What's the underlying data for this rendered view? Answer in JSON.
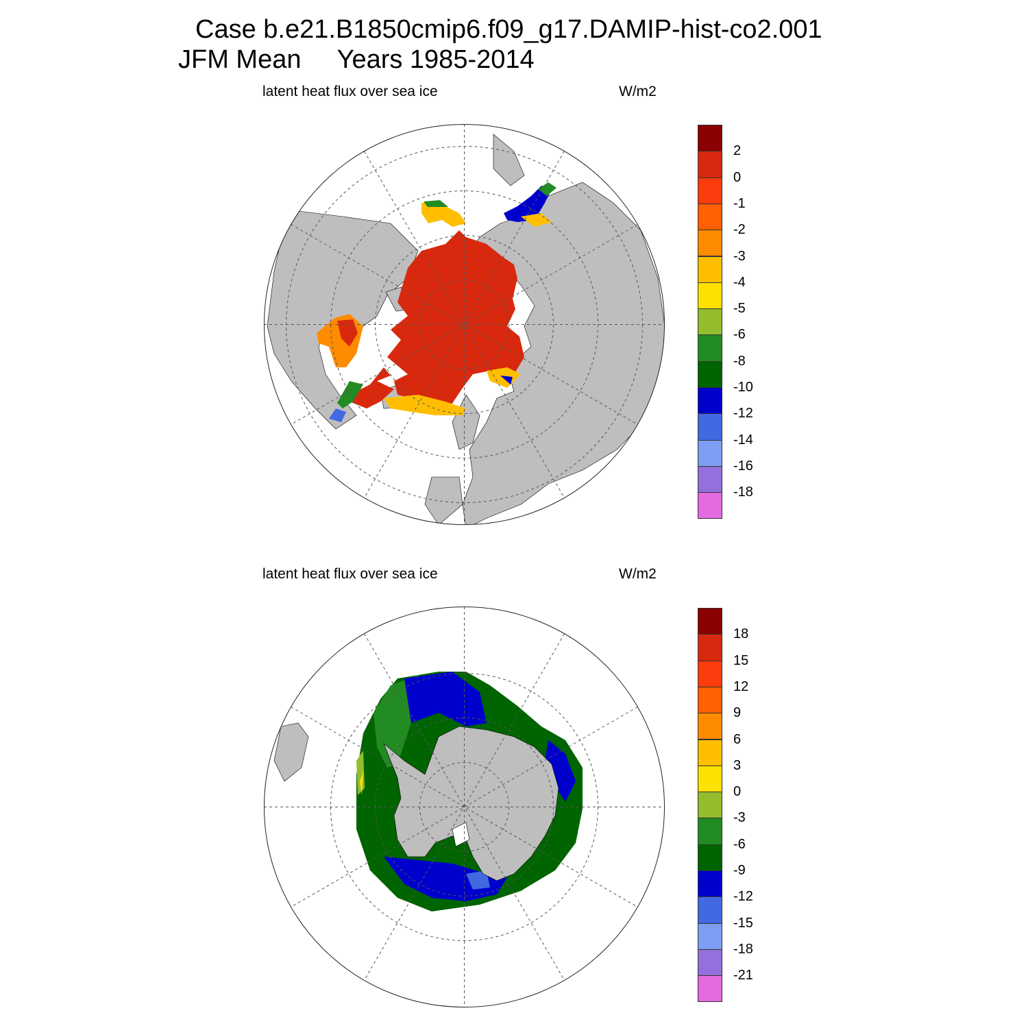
{
  "header": {
    "line1": "Case b.e21.B1850cmip6.f09_g17.DAMIP-hist-co2.001",
    "line2": "JFM Mean     Years 1985-2014"
  },
  "panels": [
    {
      "hemisphere": "north",
      "left_label": "latent heat flux over sea ice",
      "right_label": "W/m2",
      "colorbar": {
        "labels": [
          "2",
          "0",
          "-1",
          "-2",
          "-3",
          "-4",
          "-5",
          "-6",
          "-8",
          "-10",
          "-12",
          "-14",
          "-16",
          "-18"
        ],
        "colors": [
          "#8b0000",
          "#d8290e",
          "#fb3d0d",
          "#ff6000",
          "#ff8c00",
          "#ffbf00",
          "#fde100",
          "#94bd2e",
          "#228b22",
          "#006400",
          "#0000cd",
          "#4169e1",
          "#7d9ef2",
          "#9370db",
          "#e46adf"
        ]
      }
    },
    {
      "hemisphere": "south",
      "left_label": "latent heat flux over sea ice",
      "right_label": "W/m2",
      "colorbar": {
        "labels": [
          "18",
          "15",
          "12",
          "9",
          "6",
          "3",
          "0",
          "-3",
          "-6",
          "-9",
          "-12",
          "-15",
          "-18",
          "-21"
        ],
        "colors": [
          "#8b0000",
          "#d8290e",
          "#fb3d0d",
          "#ff6000",
          "#ff8c00",
          "#ffbf00",
          "#fde100",
          "#94bd2e",
          "#228b22",
          "#006400",
          "#0000cd",
          "#4169e1",
          "#7d9ef2",
          "#9370db",
          "#e46adf"
        ]
      }
    }
  ],
  "map_colors": {
    "land": "#bebebe",
    "grid": "#555555"
  }
}
